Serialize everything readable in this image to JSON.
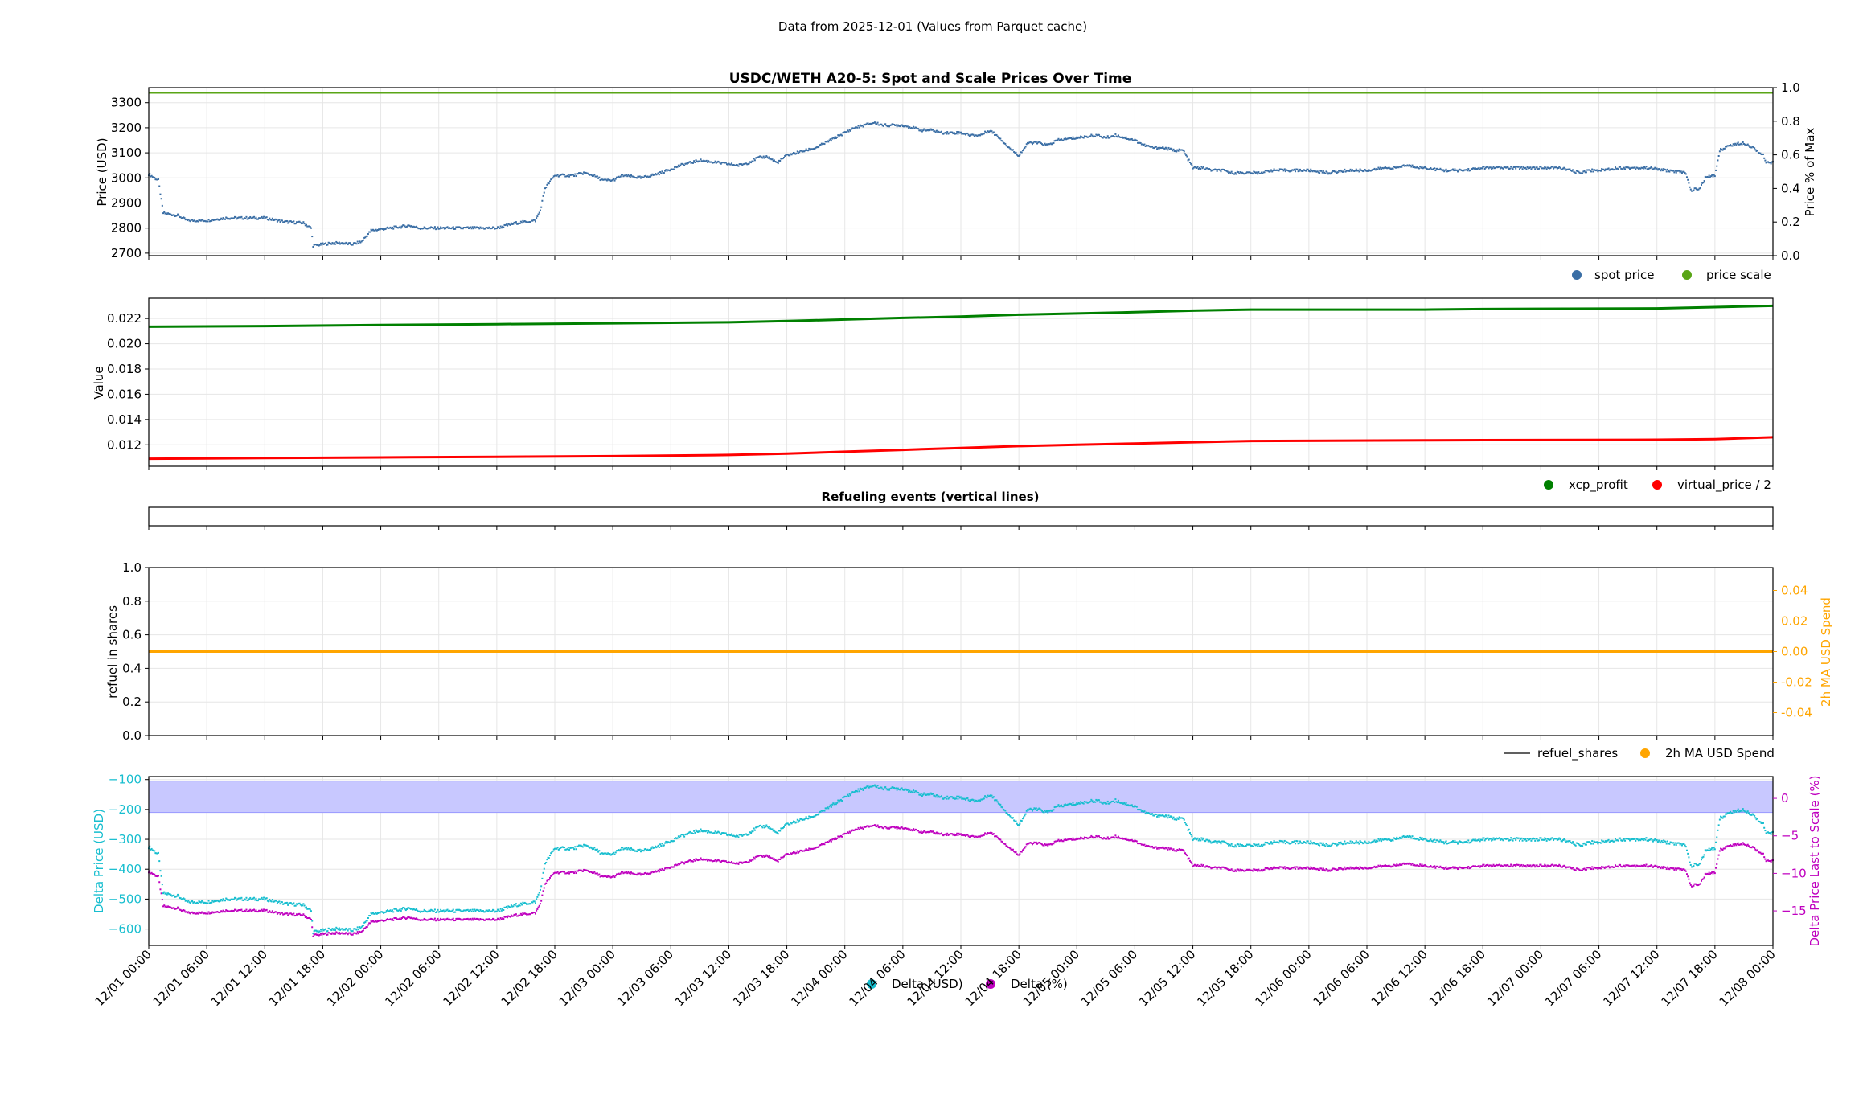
{
  "figure": {
    "suptitle": "Data from 2025-12-01 (Values from Parquet cache)"
  },
  "x_axis": {
    "tick_labels": [
      "12/01 00:00",
      "12/01 06:00",
      "12/01 12:00",
      "12/01 18:00",
      "12/02 00:00",
      "12/02 06:00",
      "12/02 12:00",
      "12/02 18:00",
      "12/03 00:00",
      "12/03 06:00",
      "12/03 12:00",
      "12/03 18:00",
      "12/04 00:00",
      "12/04 06:00",
      "12/04 12:00",
      "12/04 18:00",
      "12/05 00:00",
      "12/05 06:00",
      "12/05 12:00",
      "12/05 18:00",
      "12/06 00:00",
      "12/06 06:00",
      "12/06 12:00",
      "12/06 18:00",
      "12/07 00:00",
      "12/07 06:00",
      "12/07 12:00",
      "12/07 18:00",
      "12/08 00:00"
    ],
    "range_hours": [
      0,
      168
    ]
  },
  "chart_data": [
    {
      "id": "panel1",
      "type": "scatter",
      "title": "USDC/WETH A20-5: Spot and Scale Prices Over Time",
      "ylabel": "Price (USD)",
      "ylabel_right": "Price % of Max",
      "ylim": [
        2690,
        3360
      ],
      "yticks": [
        2700,
        2800,
        2900,
        3000,
        3100,
        3200,
        3300
      ],
      "ylim_right": [
        0,
        1
      ],
      "yticks_right": [
        "0.0",
        "0.2",
        "0.4",
        "0.6",
        "0.8",
        "1.0"
      ],
      "grid": true,
      "legend_placement": "below-right",
      "series": [
        {
          "name": "spot price",
          "color": "#3a6ea5",
          "axis": "left",
          "points": [
            [
              0,
              3015
            ],
            [
              1,
              2990
            ],
            [
              1.5,
              2860
            ],
            [
              3,
              2850
            ],
            [
              4,
              2830
            ],
            [
              6,
              2830
            ],
            [
              8,
              2840
            ],
            [
              10,
              2840
            ],
            [
              12,
              2840
            ],
            [
              14,
              2825
            ],
            [
              16,
              2820
            ],
            [
              16.8,
              2800
            ],
            [
              17,
              2730
            ],
            [
              19,
              2740
            ],
            [
              20,
              2740
            ],
            [
              21,
              2735
            ],
            [
              22,
              2745
            ],
            [
              23,
              2790
            ],
            [
              25,
              2800
            ],
            [
              27,
              2810
            ],
            [
              28,
              2800
            ],
            [
              30,
              2800
            ],
            [
              32,
              2800
            ],
            [
              34,
              2800
            ],
            [
              36,
              2800
            ],
            [
              37,
              2810
            ],
            [
              38,
              2820
            ],
            [
              40,
              2830
            ],
            [
              40.5,
              2870
            ],
            [
              41,
              2960
            ],
            [
              42,
              3010
            ],
            [
              44,
              3010
            ],
            [
              45,
              3020
            ],
            [
              46,
              3010
            ],
            [
              47,
              2990
            ],
            [
              48,
              2990
            ],
            [
              49,
              3010
            ],
            [
              51,
              3000
            ],
            [
              53,
              3020
            ],
            [
              55,
              3050
            ],
            [
              57,
              3070
            ],
            [
              59,
              3060
            ],
            [
              61,
              3050
            ],
            [
              62,
              3060
            ],
            [
              63,
              3080
            ],
            [
              64,
              3085
            ],
            [
              65,
              3060
            ],
            [
              66,
              3090
            ],
            [
              67,
              3100
            ],
            [
              68,
              3110
            ],
            [
              69,
              3120
            ],
            [
              70,
              3140
            ],
            [
              71,
              3160
            ],
            [
              72,
              3180
            ],
            [
              73,
              3200
            ],
            [
              74,
              3210
            ],
            [
              75,
              3220
            ],
            [
              76,
              3210
            ],
            [
              78,
              3210
            ],
            [
              79,
              3200
            ],
            [
              80,
              3190
            ],
            [
              81,
              3190
            ],
            [
              82,
              3180
            ],
            [
              84,
              3180
            ],
            [
              85,
              3170
            ],
            [
              86,
              3170
            ],
            [
              87,
              3190
            ],
            [
              88,
              3160
            ],
            [
              89,
              3120
            ],
            [
              90,
              3090
            ],
            [
              91,
              3140
            ],
            [
              92,
              3140
            ],
            [
              93,
              3130
            ],
            [
              94,
              3150
            ],
            [
              96,
              3160
            ],
            [
              98,
              3170
            ],
            [
              99,
              3160
            ],
            [
              100,
              3170
            ],
            [
              101,
              3160
            ],
            [
              102,
              3150
            ],
            [
              103,
              3130
            ],
            [
              104,
              3120
            ],
            [
              105,
              3120
            ],
            [
              106,
              3110
            ],
            [
              107,
              3110
            ],
            [
              108,
              3040
            ],
            [
              109,
              3040
            ],
            [
              110,
              3030
            ],
            [
              111,
              3030
            ],
            [
              112,
              3020
            ],
            [
              114,
              3020
            ],
            [
              115,
              3020
            ],
            [
              116,
              3030
            ],
            [
              118,
              3030
            ],
            [
              120,
              3030
            ],
            [
              122,
              3020
            ],
            [
              124,
              3030
            ],
            [
              126,
              3030
            ],
            [
              128,
              3040
            ],
            [
              129,
              3040
            ],
            [
              130,
              3050
            ],
            [
              132,
              3040
            ],
            [
              134,
              3030
            ],
            [
              136,
              3030
            ],
            [
              138,
              3040
            ],
            [
              140,
              3040
            ],
            [
              142,
              3040
            ],
            [
              144,
              3040
            ],
            [
              146,
              3040
            ],
            [
              148,
              3020
            ],
            [
              149,
              3030
            ],
            [
              150,
              3030
            ],
            [
              152,
              3040
            ],
            [
              153,
              3040
            ],
            [
              155,
              3040
            ],
            [
              159,
              3020
            ],
            [
              159.5,
              2950
            ],
            [
              160.5,
              2960
            ],
            [
              161,
              3000
            ],
            [
              162,
              3010
            ],
            [
              162.5,
              3110
            ],
            [
              163.5,
              3130
            ],
            [
              165,
              3140
            ],
            [
              166,
              3120
            ],
            [
              167,
              3090
            ],
            [
              167.3,
              3060
            ],
            [
              168,
              3060
            ]
          ]
        },
        {
          "name": "price scale",
          "color": "#59a516",
          "axis": "left",
          "points": [
            [
              0,
              3340
            ],
            [
              168,
              3340
            ]
          ]
        }
      ]
    },
    {
      "id": "panel2",
      "type": "line",
      "title": "",
      "ylabel": "Value",
      "ylim": [
        0.0103,
        0.0236
      ],
      "yticks": [
        "0.012",
        "0.014",
        "0.016",
        "0.018",
        "0.020",
        "0.022"
      ],
      "grid": true,
      "legend_placement": "below-right",
      "series": [
        {
          "name": "xcp_profit",
          "color": "#008000",
          "points": [
            [
              0,
              0.02135
            ],
            [
              12,
              0.0214
            ],
            [
              24,
              0.02148
            ],
            [
              36,
              0.02155
            ],
            [
              48,
              0.02162
            ],
            [
              60,
              0.0217
            ],
            [
              66,
              0.0218
            ],
            [
              72,
              0.02192
            ],
            [
              78,
              0.02205
            ],
            [
              84,
              0.02215
            ],
            [
              90,
              0.0223
            ],
            [
              96,
              0.0224
            ],
            [
              102,
              0.0225
            ],
            [
              108,
              0.02262
            ],
            [
              114,
              0.0227
            ],
            [
              132,
              0.0227
            ],
            [
              138,
              0.02275
            ],
            [
              156,
              0.0228
            ],
            [
              162,
              0.0229
            ],
            [
              168,
              0.023
            ]
          ]
        },
        {
          "name": "virtual_price / 2",
          "color": "#ff0000",
          "points": [
            [
              0,
              0.0109
            ],
            [
              12,
              0.01095
            ],
            [
              24,
              0.011
            ],
            [
              36,
              0.01105
            ],
            [
              48,
              0.0111
            ],
            [
              60,
              0.0112
            ],
            [
              66,
              0.0113
            ],
            [
              72,
              0.01145
            ],
            [
              78,
              0.0116
            ],
            [
              84,
              0.01175
            ],
            [
              90,
              0.0119
            ],
            [
              96,
              0.012
            ],
            [
              102,
              0.0121
            ],
            [
              108,
              0.0122
            ],
            [
              114,
              0.0123
            ],
            [
              132,
              0.01235
            ],
            [
              138,
              0.01237
            ],
            [
              156,
              0.0124
            ],
            [
              162,
              0.01245
            ],
            [
              168,
              0.0126
            ]
          ]
        }
      ]
    },
    {
      "id": "panel3",
      "type": "line",
      "title": "Refueling events (vertical lines)",
      "ylabel": "",
      "series": []
    },
    {
      "id": "panel4",
      "type": "line",
      "title": "",
      "ylabel": "refuel in shares",
      "ylabel_right": "2h MA USD Spend",
      "ylim": [
        0,
        1
      ],
      "yticks": [
        "0.0",
        "0.2",
        "0.4",
        "0.6",
        "0.8",
        "1.0"
      ],
      "ylim_right": [
        -0.055,
        0.055
      ],
      "yticks_right": [
        "-0.04",
        "-0.02",
        "0.00",
        "0.02",
        "0.04"
      ],
      "grid": true,
      "legend_placement": "below-right",
      "series": [
        {
          "name": "refuel_shares",
          "color": "#000000",
          "values": []
        },
        {
          "name": "2h MA USD Spend",
          "color": "#ffa500",
          "axis": "right",
          "points": [
            [
              0,
              0
            ],
            [
              168,
              0
            ]
          ]
        }
      ]
    },
    {
      "id": "panel5",
      "type": "scatter",
      "title": "",
      "ylabel": "Delta Price (USD)",
      "ylabel_right": "Delta Price Last to Scale (%)",
      "ylim": [
        -655,
        -90
      ],
      "yticks": [
        "−100",
        "−200",
        "−300",
        "−400",
        "−500",
        "−600"
      ],
      "ylim_right": [
        -19.6,
        2.9
      ],
      "yticks_right": [
        "0",
        "−5",
        "−10",
        "−15"
      ],
      "shaded_band_usd": [
        -105,
        -210
      ],
      "grid": true,
      "legend_placement": "bottom-center",
      "series": [
        {
          "name": "Delta (USD)",
          "color": "#17becf",
          "axis": "left"
        },
        {
          "name": "Delta (%)",
          "color": "#bf00bf",
          "axis": "right"
        }
      ]
    }
  ],
  "colors": {
    "band": "#c8c8ff",
    "band_edge": "#9a9aff",
    "grid": "#e6e6e6",
    "left_accent": "#17becf",
    "right_accent_orange": "#ffa500",
    "right_accent_magenta": "#bf00bf"
  }
}
